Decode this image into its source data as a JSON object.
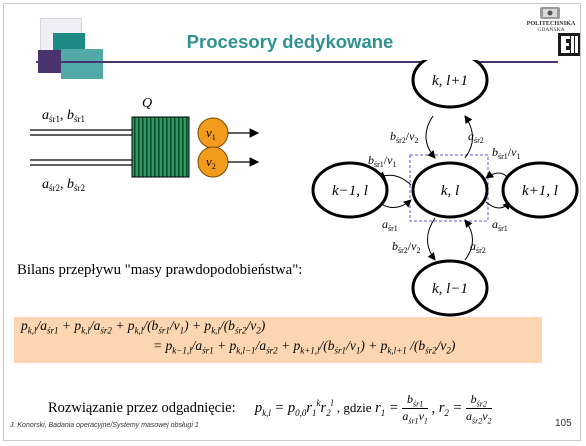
{
  "slide": {
    "title": "Procesory dedykowane",
    "logo_text": "POLITECHNIKA GDAŃSKA",
    "logo_letters": "EII",
    "footer": "J. Konorski, Badania operacyjne/Systemy masowej obsługi 1",
    "page_number": "105",
    "bilans": "Bilans przepływu \"masy prawdopodobieństwa\":",
    "formula_line1": "p_{k,l}/a_{śr1} + p_{k,l}/a_{śr2} + p_{k,l}/(b_{śr1}/v_1) + p_{k,l}/(b_{śr2}/v_2)",
    "formula_line2": "= p_{k−1,l}/a_{śr1} + p_{k,l−1}/a_{śr2} + p_{k+1,l}/(b_{śr1}/v_1) + p_{k,l+1} /(b_{śr2}/v_2)",
    "rozwiazanie_label": "Rozwiązanie przez odgadnięcie:",
    "rozwiazanie_formula": "p_{k,l} = p_{0,0} r_1^k r_2^l , gdzie r_1 = b_{śr1}/(a_{śr1} v_1), r_2 = b_{śr2}/(a_{śr2} v_2)"
  },
  "queue": {
    "label": "Q",
    "input1": "a_{śr1}, b_{śr1}",
    "input2": "a_{śr2}, b_{śr2}",
    "server1": "v_1",
    "server2": "v_2",
    "queue_color": "#1e9a5c",
    "server_color": "#f39b1c"
  },
  "states": {
    "top": "k, l+1",
    "left": "k−1, l",
    "center": "k, l",
    "right": "k+1, l",
    "bottom": "k, l−1"
  },
  "transitions": {
    "top_to_center": "b_{śr2}/v_2",
    "center_to_top": "a_{śr2}",
    "left_to_center": "a_{śr1}",
    "center_to_left": "b_{śr1}/v_1",
    "right_to_center": "b_{śr1}/v_1",
    "center_to_right": "a_{śr1}",
    "bottom_to_center": "a_{śr2}",
    "center_to_bottom": "b_{śr2}/v_2"
  }
}
